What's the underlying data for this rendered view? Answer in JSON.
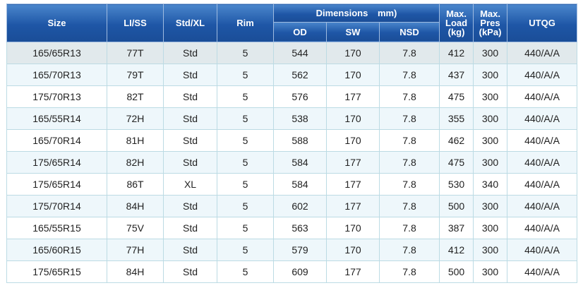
{
  "header": {
    "size": "Size",
    "li_ss": "LI/SS",
    "std_xl": "Std/XL",
    "rim": "Rim",
    "dimensions": "Dimensions",
    "dimensions_unit": "mm)",
    "od": "OD",
    "sw": "SW",
    "nsd": "NSD",
    "max_load": [
      "Max.",
      "Load",
      "(kg)"
    ],
    "max_pres": [
      "Max.",
      "Pres",
      "(kPa)"
    ],
    "utqg": "UTQG"
  },
  "rows": [
    {
      "size": "165/65R13",
      "li": "77T",
      "std": "Std",
      "rim": "5",
      "od": "544",
      "sw": "170",
      "nsd": "7.8",
      "load": "412",
      "pres": "300",
      "utqg": "440/A/A"
    },
    {
      "size": "165/70R13",
      "li": "79T",
      "std": "Std",
      "rim": "5",
      "od": "562",
      "sw": "170",
      "nsd": "7.8",
      "load": "437",
      "pres": "300",
      "utqg": "440/A/A"
    },
    {
      "size": "175/70R13",
      "li": "82T",
      "std": "Std",
      "rim": "5",
      "od": "576",
      "sw": "177",
      "nsd": "7.8",
      "load": "475",
      "pres": "300",
      "utqg": "440/A/A"
    },
    {
      "size": "165/55R14",
      "li": "72H",
      "std": "Std",
      "rim": "5",
      "od": "538",
      "sw": "170",
      "nsd": "7.8",
      "load": "355",
      "pres": "300",
      "utqg": "440/A/A"
    },
    {
      "size": "165/70R14",
      "li": "81H",
      "std": "Std",
      "rim": "5",
      "od": "588",
      "sw": "170",
      "nsd": "7.8",
      "load": "462",
      "pres": "300",
      "utqg": "440/A/A"
    },
    {
      "size": "175/65R14",
      "li": "82H",
      "std": "Std",
      "rim": "5",
      "od": "584",
      "sw": "177",
      "nsd": "7.8",
      "load": "475",
      "pres": "300",
      "utqg": "440/A/A"
    },
    {
      "size": "175/65R14",
      "li": "86T",
      "std": "XL",
      "rim": "5",
      "od": "584",
      "sw": "177",
      "nsd": "7.8",
      "load": "530",
      "pres": "340",
      "utqg": "440/A/A"
    },
    {
      "size": "175/70R14",
      "li": "84H",
      "std": "Std",
      "rim": "5",
      "od": "602",
      "sw": "177",
      "nsd": "7.8",
      "load": "500",
      "pres": "300",
      "utqg": "440/A/A"
    },
    {
      "size": "165/55R15",
      "li": "75V",
      "std": "Std",
      "rim": "5",
      "od": "563",
      "sw": "170",
      "nsd": "7.8",
      "load": "387",
      "pres": "300",
      "utqg": "440/A/A"
    },
    {
      "size": "165/60R15",
      "li": "77H",
      "std": "Std",
      "rim": "5",
      "od": "579",
      "sw": "170",
      "nsd": "7.8",
      "load": "412",
      "pres": "300",
      "utqg": "440/A/A"
    },
    {
      "size": "175/65R15",
      "li": "84H",
      "std": "Std",
      "rim": "5",
      "od": "609",
      "sw": "177",
      "nsd": "7.8",
      "load": "500",
      "pres": "300",
      "utqg": "440/A/A"
    }
  ]
}
